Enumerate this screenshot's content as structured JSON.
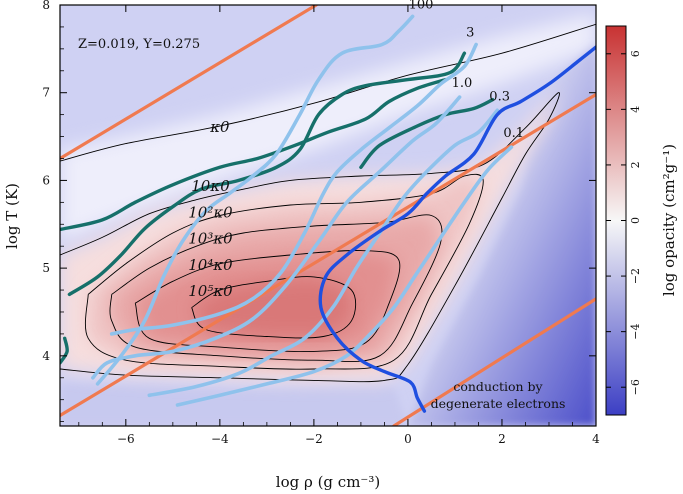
{
  "chart_data": {
    "type": "heatmap",
    "title": "",
    "xlabel": "log ρ (g cm⁻³)",
    "ylabel": "log T (K)",
    "xlim": [
      -7.4,
      4
    ],
    "ylim": [
      3.2,
      8
    ],
    "xticks": [
      -6,
      -4,
      -2,
      0,
      2,
      4
    ],
    "xtick_labels": [
      "−6",
      "−4",
      "−2",
      "0",
      "2",
      "4"
    ],
    "yticks": [
      4,
      5,
      6,
      7,
      8
    ],
    "ytick_labels": [
      "4",
      "5",
      "6",
      "7",
      "8"
    ],
    "colorbar": {
      "label": "log opacity (cm²g⁻¹)",
      "range": [
        -7,
        7
      ],
      "ticks": [
        -6,
        -4,
        -2,
        0,
        2,
        4,
        6
      ],
      "tick_labels": [
        "−6",
        "−4",
        "−2",
        "0",
        "2",
        "4",
        "6"
      ],
      "colors": {
        "low": "#3c3fc4",
        "mid": "#f7f7f7",
        "high": "#c83232"
      }
    },
    "composition_label": "Z=0.019, Y=0.275",
    "region_label": [
      "conduction by",
      "degenerate electrons"
    ],
    "contour_labels": [
      {
        "text": "κ0",
        "x": -4.0,
        "y": 6.55
      },
      {
        "text": "10κ0",
        "x": -4.2,
        "y": 5.88
      },
      {
        "text": "10²κ0",
        "x": -4.2,
        "y": 5.58
      },
      {
        "text": "10³κ0",
        "x": -4.2,
        "y": 5.28
      },
      {
        "text": "10⁴κ0",
        "x": -4.2,
        "y": 4.98
      },
      {
        "text": "10⁵κ0",
        "x": -4.2,
        "y": 4.68
      }
    ],
    "orange_lines": [
      {
        "name": "upper",
        "points": [
          [
            -7.4,
            6.25
          ],
          [
            -1.95,
            8.0
          ]
        ]
      },
      {
        "name": "middle",
        "points": [
          [
            -7.4,
            3.32
          ],
          [
            4.0,
            6.98
          ]
        ]
      },
      {
        "name": "lower",
        "points": [
          [
            -0.3,
            3.2
          ],
          [
            4.0,
            4.65
          ]
        ]
      }
    ],
    "teal_tracks": [
      {
        "name": "teal-outer",
        "points": [
          [
            -7.4,
            5.44
          ],
          [
            -6.5,
            5.55
          ],
          [
            -5.8,
            5.75
          ],
          [
            -5.0,
            5.95
          ],
          [
            -4.0,
            6.15
          ],
          [
            -3.2,
            6.25
          ],
          [
            -2.4,
            6.4
          ],
          [
            -1.7,
            6.55
          ],
          [
            -0.9,
            6.7
          ],
          [
            -0.4,
            6.9
          ],
          [
            0.2,
            7.05
          ],
          [
            0.8,
            7.15
          ]
        ]
      },
      {
        "name": "teal-middle",
        "points": [
          [
            -7.2,
            4.7
          ],
          [
            -6.6,
            4.9
          ],
          [
            -6.1,
            5.15
          ],
          [
            -5.6,
            5.45
          ],
          [
            -5.0,
            5.7
          ],
          [
            -4.4,
            5.9
          ],
          [
            -3.6,
            6.0
          ],
          [
            -2.8,
            6.15
          ],
          [
            -2.3,
            6.35
          ],
          [
            -1.9,
            6.75
          ],
          [
            -1.4,
            6.98
          ],
          [
            -0.9,
            7.08
          ],
          [
            0.0,
            7.15
          ],
          [
            0.9,
            7.23
          ],
          [
            1.2,
            7.45
          ]
        ]
      },
      {
        "name": "teal-inner",
        "points": [
          [
            -1.0,
            6.15
          ],
          [
            -0.6,
            6.4
          ],
          [
            0.2,
            6.62
          ],
          [
            0.8,
            6.75
          ],
          [
            1.4,
            6.82
          ],
          [
            1.8,
            6.92
          ]
        ]
      },
      {
        "name": "teal-edge",
        "points": [
          [
            -7.4,
            3.92
          ],
          [
            -7.25,
            4.05
          ],
          [
            -7.3,
            4.2
          ]
        ]
      }
    ],
    "light_blue_tracks": [
      {
        "name": "100",
        "label": "100",
        "points": [
          [
            -6.6,
            3.68
          ],
          [
            -6.1,
            4.0
          ],
          [
            -5.6,
            4.4
          ],
          [
            -5.2,
            4.9
          ],
          [
            -4.8,
            5.3
          ],
          [
            -4.3,
            5.65
          ],
          [
            -3.8,
            5.85
          ],
          [
            -3.3,
            6.05
          ],
          [
            -2.8,
            6.3
          ],
          [
            -2.3,
            6.75
          ],
          [
            -1.9,
            7.15
          ],
          [
            -1.4,
            7.45
          ],
          [
            -0.55,
            7.55
          ],
          [
            -0.2,
            7.7
          ],
          [
            0.1,
            7.87
          ]
        ]
      },
      {
        "name": "3",
        "label": "3",
        "points": [
          [
            -6.3,
            4.25
          ],
          [
            -5.8,
            4.3
          ],
          [
            -5.0,
            4.35
          ],
          [
            -4.0,
            4.48
          ],
          [
            -3.3,
            4.65
          ],
          [
            -2.7,
            4.95
          ],
          [
            -2.2,
            5.4
          ],
          [
            -1.8,
            5.85
          ],
          [
            -1.5,
            6.1
          ],
          [
            -1.0,
            6.35
          ],
          [
            -0.4,
            6.6
          ],
          [
            0.2,
            6.85
          ],
          [
            0.7,
            7.1
          ],
          [
            1.2,
            7.3
          ],
          [
            1.45,
            7.55
          ]
        ]
      },
      {
        "name": "1.0",
        "label": "1.0",
        "points": [
          [
            -6.7,
            3.75
          ],
          [
            -6.4,
            3.92
          ],
          [
            -5.8,
            4.0
          ],
          [
            -5.0,
            4.05
          ],
          [
            -4.1,
            4.2
          ],
          [
            -3.3,
            4.42
          ],
          [
            -2.6,
            4.8
          ],
          [
            -1.9,
            5.3
          ],
          [
            -1.3,
            5.75
          ],
          [
            -0.6,
            6.1
          ],
          [
            0.1,
            6.45
          ],
          [
            0.6,
            6.65
          ],
          [
            1.1,
            6.95
          ]
        ]
      },
      {
        "name": "0.3",
        "label": "0.3",
        "points": [
          [
            -5.5,
            3.55
          ],
          [
            -4.5,
            3.65
          ],
          [
            -3.6,
            3.8
          ],
          [
            -2.9,
            4.0
          ],
          [
            -2.2,
            4.2
          ],
          [
            -1.6,
            4.55
          ],
          [
            -1.1,
            5.0
          ],
          [
            -0.6,
            5.4
          ],
          [
            -0.1,
            5.8
          ],
          [
            0.4,
            6.1
          ],
          [
            1.0,
            6.4
          ],
          [
            1.5,
            6.55
          ],
          [
            1.9,
            6.8
          ]
        ]
      },
      {
        "name": "0.1",
        "label": "0.1",
        "points": [
          [
            -4.9,
            3.44
          ],
          [
            -4.0,
            3.55
          ],
          [
            -3.0,
            3.68
          ],
          [
            -2.0,
            3.82
          ],
          [
            -1.3,
            4.0
          ],
          [
            -0.8,
            4.25
          ],
          [
            -0.3,
            4.55
          ],
          [
            0.2,
            4.95
          ],
          [
            0.7,
            5.35
          ],
          [
            1.2,
            5.75
          ],
          [
            1.7,
            6.12
          ],
          [
            2.2,
            6.38
          ]
        ]
      }
    ],
    "blue_track": {
      "name": "dark-blue",
      "points": [
        [
          0.35,
          3.37
        ],
        [
          0.2,
          3.52
        ],
        [
          0.05,
          3.7
        ],
        [
          -0.5,
          3.82
        ],
        [
          -1.0,
          3.95
        ],
        [
          -1.5,
          4.2
        ],
        [
          -1.85,
          4.55
        ],
        [
          -1.75,
          4.9
        ],
        [
          -1.3,
          5.15
        ],
        [
          -0.6,
          5.42
        ],
        [
          0.0,
          5.62
        ],
        [
          0.4,
          5.85
        ],
        [
          0.8,
          6.05
        ],
        [
          1.4,
          6.3
        ],
        [
          1.9,
          6.75
        ],
        [
          2.4,
          6.9
        ],
        [
          3.0,
          7.1
        ],
        [
          3.6,
          7.35
        ],
        [
          4.0,
          7.52
        ]
      ]
    },
    "contour_levels": [
      {
        "level": 0,
        "points": [
          [
            -7.4,
            6.22
          ],
          [
            -6,
            6.42
          ],
          [
            -4,
            6.62
          ],
          [
            -2,
            6.88
          ],
          [
            0,
            7.2
          ],
          [
            2,
            7.45
          ],
          [
            4,
            7.78
          ]
        ]
      },
      {
        "level": 1,
        "points": [
          [
            -7.4,
            5.15
          ],
          [
            -6.5,
            5.35
          ],
          [
            -5.5,
            5.62
          ],
          [
            -4.5,
            5.78
          ],
          [
            -3.5,
            5.9
          ],
          [
            -2.5,
            6.0
          ],
          [
            -1,
            6.05
          ],
          [
            0.5,
            6.08
          ],
          [
            1.6,
            6.18
          ],
          [
            2.5,
            6.6
          ],
          [
            3.2,
            7.0
          ],
          [
            3.0,
            6.7
          ],
          [
            2.5,
            6.3
          ],
          [
            2.0,
            5.8
          ],
          [
            1.0,
            4.8
          ],
          [
            0.0,
            3.9
          ],
          [
            -0.5,
            3.72
          ],
          [
            -2,
            3.72
          ],
          [
            -4,
            3.75
          ],
          [
            -6,
            3.78
          ],
          [
            -7.4,
            3.85
          ]
        ]
      },
      {
        "level": 2,
        "points": [
          [
            -6.8,
            4.7
          ],
          [
            -6.0,
            5.05
          ],
          [
            -5.0,
            5.4
          ],
          [
            -4.0,
            5.6
          ],
          [
            -2.5,
            5.72
          ],
          [
            -1,
            5.75
          ],
          [
            0.5,
            5.85
          ],
          [
            1.2,
            6.05
          ],
          [
            1.6,
            6.0
          ],
          [
            1.3,
            5.5
          ],
          [
            0.5,
            4.7
          ],
          [
            -0.3,
            3.95
          ],
          [
            -2,
            3.85
          ],
          [
            -4,
            3.88
          ],
          [
            -6,
            3.95
          ],
          [
            -6.8,
            4.2
          ],
          [
            -6.8,
            4.7
          ]
        ]
      },
      {
        "level": 3,
        "points": [
          [
            -6.3,
            4.7
          ],
          [
            -5.5,
            5.0
          ],
          [
            -4.5,
            5.25
          ],
          [
            -3.5,
            5.4
          ],
          [
            -2.0,
            5.48
          ],
          [
            -0.5,
            5.52
          ],
          [
            0.5,
            5.6
          ],
          [
            0.7,
            5.3
          ],
          [
            0.1,
            4.6
          ],
          [
            -0.6,
            4.0
          ],
          [
            -2,
            3.95
          ],
          [
            -4,
            4.0
          ],
          [
            -5.8,
            4.1
          ],
          [
            -6.3,
            4.4
          ],
          [
            -6.3,
            4.7
          ]
        ]
      },
      {
        "level": 4,
        "points": [
          [
            -5.8,
            4.6
          ],
          [
            -5.0,
            4.85
          ],
          [
            -4.0,
            5.05
          ],
          [
            -2.5,
            5.15
          ],
          [
            -1.0,
            5.2
          ],
          [
            -0.2,
            5.1
          ],
          [
            -0.4,
            4.6
          ],
          [
            -0.9,
            4.15
          ],
          [
            -2,
            4.05
          ],
          [
            -4,
            4.1
          ],
          [
            -5.5,
            4.2
          ],
          [
            -5.8,
            4.6
          ]
        ]
      },
      {
        "level": 5,
        "points": [
          [
            -4.6,
            4.55
          ],
          [
            -4.0,
            4.75
          ],
          [
            -3.0,
            4.85
          ],
          [
            -2.0,
            4.9
          ],
          [
            -1.2,
            4.75
          ],
          [
            -1.2,
            4.4
          ],
          [
            -1.8,
            4.22
          ],
          [
            -3,
            4.22
          ],
          [
            -4.3,
            4.3
          ],
          [
            -4.6,
            4.55
          ]
        ]
      }
    ]
  }
}
